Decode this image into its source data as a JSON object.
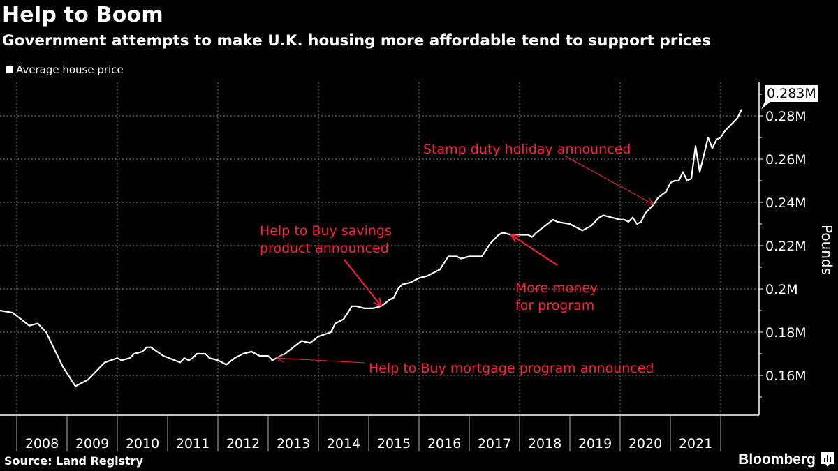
{
  "title": "Help to Boom",
  "subtitle": "Government attempts to make U.K. housing more affordable tend to support prices",
  "source": "Source: Land Registry",
  "logo": "Bloomberg",
  "colors": {
    "background": "#000000",
    "line": "#ffffff",
    "annotation": "#ff1f3d",
    "grid": "#777777"
  },
  "chart_data": {
    "type": "line",
    "title": "Help to Boom",
    "legend": {
      "entries": [
        "Average house price"
      ],
      "placement": "top-left"
    },
    "ylabel": "Pounds",
    "ylim": [
      0.145,
      0.305
    ],
    "y_ticks": [
      "0.16M",
      "0.18M",
      "0.2M",
      "0.22M",
      "0.24M",
      "0.26M",
      "0.28M"
    ],
    "y_tick_values": [
      0.16,
      0.18,
      0.2,
      0.22,
      0.24,
      0.26,
      0.28
    ],
    "x_ticks": [
      "2008",
      "2009",
      "2010",
      "2011",
      "2012",
      "2013",
      "2014",
      "2015",
      "2016",
      "2017",
      "2018",
      "2019",
      "2020",
      "2021"
    ],
    "xlim": [
      "2007-09",
      "2022-09"
    ],
    "grid": true,
    "last_value_label": "0.283M",
    "series": [
      {
        "name": "Average house price",
        "unit": "M pounds",
        "points": [
          [
            "2007-09",
            0.19
          ],
          [
            "2007-12",
            0.189
          ],
          [
            "2008-02",
            0.186
          ],
          [
            "2008-04",
            0.183
          ],
          [
            "2008-06",
            0.184
          ],
          [
            "2008-08",
            0.18
          ],
          [
            "2008-10",
            0.172
          ],
          [
            "2008-12",
            0.164
          ],
          [
            "2009-02",
            0.158
          ],
          [
            "2009-03",
            0.155
          ],
          [
            "2009-06",
            0.158
          ],
          [
            "2009-08",
            0.162
          ],
          [
            "2009-10",
            0.166
          ],
          [
            "2010-01",
            0.168
          ],
          [
            "2010-02",
            0.167
          ],
          [
            "2010-04",
            0.168
          ],
          [
            "2010-05",
            0.17
          ],
          [
            "2010-07",
            0.171
          ],
          [
            "2010-08",
            0.173
          ],
          [
            "2010-09",
            0.173
          ],
          [
            "2010-12",
            0.169
          ],
          [
            "2011-04",
            0.166
          ],
          [
            "2011-05",
            0.168
          ],
          [
            "2011-06",
            0.167
          ],
          [
            "2011-07",
            0.168
          ],
          [
            "2011-08",
            0.17
          ],
          [
            "2011-10",
            0.17
          ],
          [
            "2011-11",
            0.168
          ],
          [
            "2012-01",
            0.167
          ],
          [
            "2012-03",
            0.165
          ],
          [
            "2012-05",
            0.168
          ],
          [
            "2012-07",
            0.17
          ],
          [
            "2012-09",
            0.171
          ],
          [
            "2012-11",
            0.169
          ],
          [
            "2013-01",
            0.169
          ],
          [
            "2013-02",
            0.167
          ],
          [
            "2013-03",
            0.168
          ],
          [
            "2013-05",
            0.17
          ],
          [
            "2013-09",
            0.176
          ],
          [
            "2013-11",
            0.175
          ],
          [
            "2014-01",
            0.178
          ],
          [
            "2014-04",
            0.18
          ],
          [
            "2014-05",
            0.184
          ],
          [
            "2014-07",
            0.186
          ],
          [
            "2014-09",
            0.192
          ],
          [
            "2014-10",
            0.192
          ],
          [
            "2014-12",
            0.191
          ],
          [
            "2015-02",
            0.191
          ],
          [
            "2015-04",
            0.192
          ],
          [
            "2015-06",
            0.195
          ],
          [
            "2015-07",
            0.196
          ],
          [
            "2015-08",
            0.2
          ],
          [
            "2015-09",
            0.202
          ],
          [
            "2015-11",
            0.203
          ],
          [
            "2016-01",
            0.205
          ],
          [
            "2016-03",
            0.206
          ],
          [
            "2016-05",
            0.208
          ],
          [
            "2016-06",
            0.209
          ],
          [
            "2016-08",
            0.215
          ],
          [
            "2016-10",
            0.215
          ],
          [
            "2016-11",
            0.214
          ],
          [
            "2017-01",
            0.215
          ],
          [
            "2017-04",
            0.215
          ],
          [
            "2017-05",
            0.218
          ],
          [
            "2017-06",
            0.221
          ],
          [
            "2017-08",
            0.225
          ],
          [
            "2017-09",
            0.226
          ],
          [
            "2017-11",
            0.225
          ],
          [
            "2018-01",
            0.225
          ],
          [
            "2018-03",
            0.225
          ],
          [
            "2018-04",
            0.224
          ],
          [
            "2018-05",
            0.226
          ],
          [
            "2018-07",
            0.229
          ],
          [
            "2018-09",
            0.232
          ],
          [
            "2018-10",
            0.231
          ],
          [
            "2019-01",
            0.23
          ],
          [
            "2019-04",
            0.227
          ],
          [
            "2019-05",
            0.228
          ],
          [
            "2019-06",
            0.229
          ],
          [
            "2019-08",
            0.233
          ],
          [
            "2019-09",
            0.234
          ],
          [
            "2019-11",
            0.233
          ],
          [
            "2020-01",
            0.232
          ],
          [
            "2020-02",
            0.232
          ],
          [
            "2020-03",
            0.231
          ],
          [
            "2020-04",
            0.233
          ],
          [
            "2020-05",
            0.23
          ],
          [
            "2020-06",
            0.231
          ],
          [
            "2020-07",
            0.235
          ],
          [
            "2020-09",
            0.239
          ],
          [
            "2020-10",
            0.242
          ],
          [
            "2020-12",
            0.245
          ],
          [
            "2021-01",
            0.249
          ],
          [
            "2021-02",
            0.25
          ],
          [
            "2021-03",
            0.25
          ],
          [
            "2021-04",
            0.254
          ],
          [
            "2021-05",
            0.25
          ],
          [
            "2021-06",
            0.251
          ],
          [
            "2021-07",
            0.266
          ],
          [
            "2021-08",
            0.254
          ],
          [
            "2021-10",
            0.27
          ],
          [
            "2021-11",
            0.265
          ],
          [
            "2021-12",
            0.269
          ],
          [
            "2022-01",
            0.27
          ],
          [
            "2022-02",
            0.273
          ],
          [
            "2022-03",
            0.275
          ],
          [
            "2022-05",
            0.279
          ],
          [
            "2022-06",
            0.283
          ]
        ]
      }
    ],
    "annotations": [
      {
        "lines": [
          "Help to Buy mortgage program announced"
        ],
        "date": "2013-03"
      },
      {
        "lines": [
          "Help to Buy savings",
          "product announced"
        ],
        "date": "2015-04"
      },
      {
        "lines": [
          "More money",
          "for program"
        ],
        "date": "2017-11"
      },
      {
        "lines": [
          "Stamp duty holiday announced"
        ],
        "date": "2020-09"
      }
    ]
  }
}
